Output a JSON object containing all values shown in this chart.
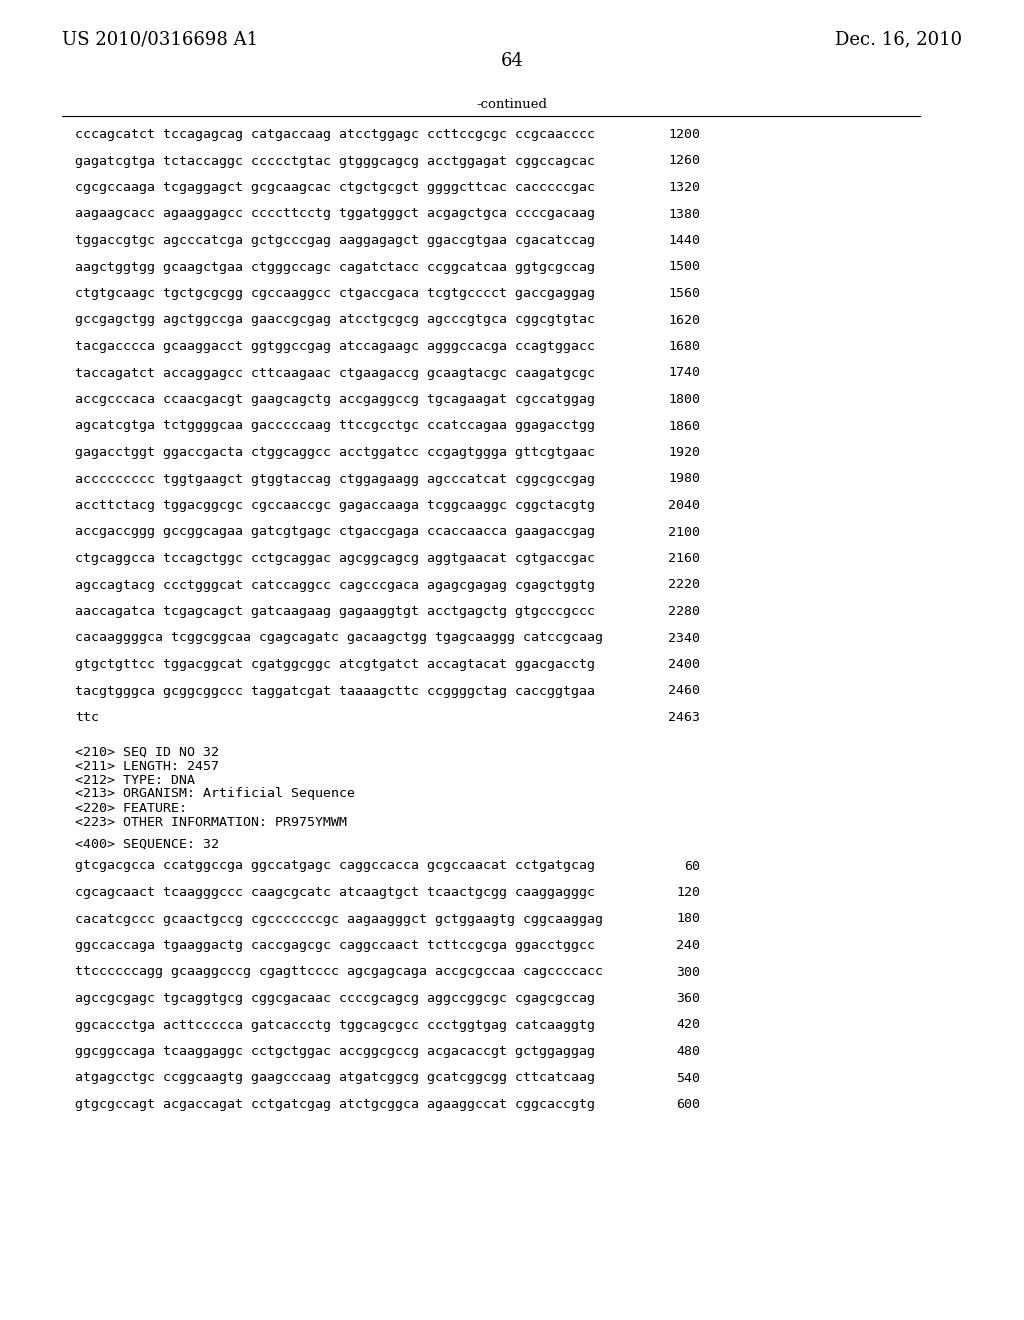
{
  "header_left": "US 2010/0316698 A1",
  "header_right": "Dec. 16, 2010",
  "page_number": "64",
  "continued_label": "-continued",
  "background_color": "#ffffff",
  "text_color": "#000000",
  "font_size_header": 13,
  "font_size_body": 9.5,
  "font_size_page": 13,
  "sequence_lines_top": [
    [
      "cccagcatct tccagagcag catgaccaag atcctggagc ccttccgcgc ccgcaacccc",
      "1200"
    ],
    [
      "gagatcgtga tctaccaggc ccccctgtac gtgggcagcg acctggagat cggccagcac",
      "1260"
    ],
    [
      "cgcgccaaga tcgaggagct gcgcaagcac ctgctgcgct ggggcttcac cacccccgac",
      "1320"
    ],
    [
      "aagaagcacc agaaggagcc ccccttcctg tggatgggct acgagctgca ccccgacaag",
      "1380"
    ],
    [
      "tggaccgtgc agcccatcga gctgcccgag aaggagagct ggaccgtgaa cgacatccag",
      "1440"
    ],
    [
      "aagctggtgg gcaagctgaa ctgggccagc cagatctacc ccggcatcaa ggtgcgccag",
      "1500"
    ],
    [
      "ctgtgcaagc tgctgcgcgg cgccaaggcc ctgaccgaca tcgtgcccct gaccgaggag",
      "1560"
    ],
    [
      "gccgagctgg agctggccga gaaccgcgag atcctgcgcg agcccgtgca cggcgtgtac",
      "1620"
    ],
    [
      "tacgacccca gcaaggacct ggtggccgag atccagaagc agggccacga ccagtggacc",
      "1680"
    ],
    [
      "taccagatct accaggagcc cttcaagaac ctgaagaccg gcaagtacgc caagatgcgc",
      "1740"
    ],
    [
      "accgcccaca ccaacgacgt gaagcagctg accgaggccg tgcagaagat cgccatggag",
      "1800"
    ],
    [
      "agcatcgtga tctggggcaa gacccccaag ttccgcctgc ccatccagaa ggagacctgg",
      "1860"
    ],
    [
      "gagacctggt ggaccgacta ctggcaggcc acctggatcc ccgagtggga gttcgtgaac",
      "1920"
    ],
    [
      "accccccccc tggtgaagct gtggtaccag ctggagaagg agcccatcat cggcgccgag",
      "1980"
    ],
    [
      "accttctacg tggacggcgc cgccaaccgc gagaccaaga tcggcaaggc cggctacgtg",
      "2040"
    ],
    [
      "accgaccggg gccggcagaa gatcgtgagc ctgaccgaga ccaccaacca gaagaccgag",
      "2100"
    ],
    [
      "ctgcaggcca tccagctggc cctgcaggac agcggcagcg aggtgaacat cgtgaccgac",
      "2160"
    ],
    [
      "agccagtacg ccctgggcat catccaggcc cagcccgaca agagcgagag cgagctggtg",
      "2220"
    ],
    [
      "aaccagatca tcgagcagct gatcaagaag gagaaggtgt acctgagctg gtgcccgccc",
      "2280"
    ],
    [
      "cacaaggggca tcggcggcaa cgagcagatc gacaagctgg tgagcaaggg catccgcaag",
      "2340"
    ],
    [
      "gtgctgttcc tggacggcat cgatggcggc atcgtgatct accagtacat ggacgacctg",
      "2400"
    ],
    [
      "tacgtgggca gcggcggccc taggatcgat taaaagcttc ccggggctag caccggtgaa",
      "2460"
    ],
    [
      "ttc",
      "2463"
    ]
  ],
  "metadata_lines": [
    "<210> SEQ ID NO 32",
    "<211> LENGTH: 2457",
    "<212> TYPE: DNA",
    "<213> ORGANISM: Artificial Sequence",
    "<220> FEATURE:",
    "<223> OTHER INFORMATION: PR975YMWM"
  ],
  "sequence400_label": "<400> SEQUENCE: 32",
  "sequence_lines_bottom": [
    [
      "gtcgacgcca ccatggccga ggccatgagc caggccacca gcgccaacat cctgatgcag",
      "60"
    ],
    [
      "cgcagcaact tcaagggccc caagcgcatc atcaagtgct tcaactgcgg caaggagggc",
      "120"
    ],
    [
      "cacatcgccc gcaactgccg cgcccccccgc aagaagggct gctggaagtg cggcaaggag",
      "180"
    ],
    [
      "ggccaccaga tgaaggactg caccgagcgc caggccaact tcttccgcga ggacctggcc",
      "240"
    ],
    [
      "ttccccccagg gcaaggcccg cgagttcccc agcgagcaga accgcgccaa cagccccacc",
      "300"
    ],
    [
      "agccgcgagc tgcaggtgcg cggcgacaac ccccgcagcg aggccggcgc cgagcgccag",
      "360"
    ],
    [
      "ggcaccctga acttccccca gatcaccctg tggcagcgcc ccctggtgag catcaaggtg",
      "420"
    ],
    [
      "ggcggccaga tcaaggaggc cctgctggac accggcgccg acgacaccgt gctggaggag",
      "480"
    ],
    [
      "atgagcctgc ccggcaagtg gaagcccaag atgatcggcg gcatcggcgg cttcatcaag",
      "540"
    ],
    [
      "gtgcgccagt acgaccagat cctgatcgag atctgcggca agaaggccat cggcaccgtg",
      "600"
    ]
  ]
}
